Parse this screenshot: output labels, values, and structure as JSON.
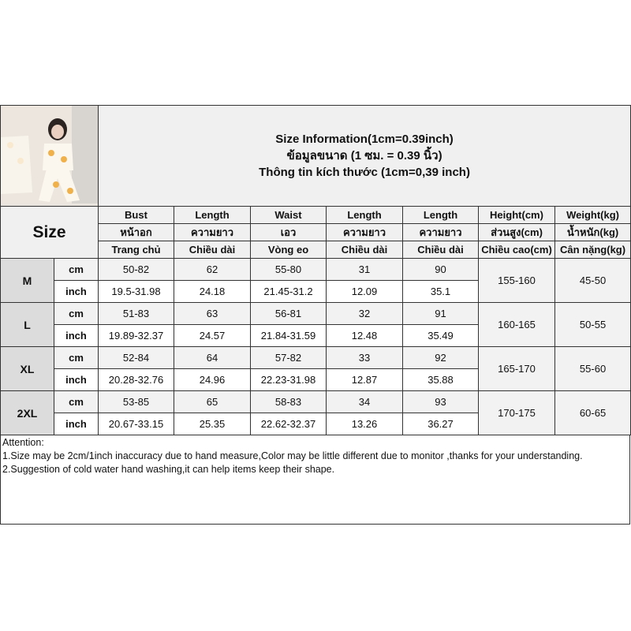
{
  "title": {
    "en": "Size Information(1cm=0.39inch)",
    "th": "ข้อมูลขนาด (1 ซม. = 0.39 นิ้ว)",
    "vi": "Thông tin kích thước (1cm=0,39 inch)"
  },
  "size_label": "Size",
  "columns": [
    {
      "en": "Bust",
      "th": "หน้าอก",
      "vi": "Trang chủ"
    },
    {
      "en": "Length",
      "th": "ความยาว",
      "vi": "Chiều dài"
    },
    {
      "en": "Waist",
      "th": "เอว",
      "vi": "Vòng eo"
    },
    {
      "en": "Length",
      "th": "ความยาว",
      "vi": "Chiều dài"
    },
    {
      "en": "Length",
      "th": "ความยาว",
      "vi": "Chiều dài"
    },
    {
      "en": "Height(cm)",
      "th": "ส่วนสูง(cm)",
      "vi": "Chiều cao(cm)"
    },
    {
      "en": "Weight(kg)",
      "th": "น้ำหนัก(kg)",
      "vi": "Cân nặng(kg)"
    }
  ],
  "units": {
    "cm": "cm",
    "inch": "inch"
  },
  "rows": [
    {
      "size": "M",
      "cm": [
        "50-82",
        "62",
        "55-80",
        "31",
        "90"
      ],
      "inch": [
        "19.5-31.98",
        "24.18",
        "21.45-31.2",
        "12.09",
        "35.1"
      ],
      "height": "155-160",
      "weight": "45-50"
    },
    {
      "size": "L",
      "cm": [
        "51-83",
        "63",
        "56-81",
        "32",
        "91"
      ],
      "inch": [
        "19.89-32.37",
        "24.57",
        "21.84-31.59",
        "12.48",
        "35.49"
      ],
      "height": "160-165",
      "weight": "50-55"
    },
    {
      "size": "XL",
      "cm": [
        "52-84",
        "64",
        "57-82",
        "33",
        "92"
      ],
      "inch": [
        "20.28-32.76",
        "24.96",
        "22.23-31.98",
        "12.87",
        "35.88"
      ],
      "height": "165-170",
      "weight": "55-60"
    },
    {
      "size": "2XL",
      "cm": [
        "53-85",
        "65",
        "58-83",
        "34",
        "93"
      ],
      "inch": [
        "20.67-33.15",
        "25.35",
        "22.62-32.37",
        "13.26",
        "36.27"
      ],
      "height": "170-175",
      "weight": "60-65"
    }
  ],
  "attention": {
    "heading": "Attention:",
    "lines": [
      "1.Size may be 2cm/1inch inaccuracy due to hand measure,Color may be little different due to monitor ,thanks for your understanding.",
      "2.Suggestion of cold water hand washing,it can help items keep their shape."
    ]
  }
}
